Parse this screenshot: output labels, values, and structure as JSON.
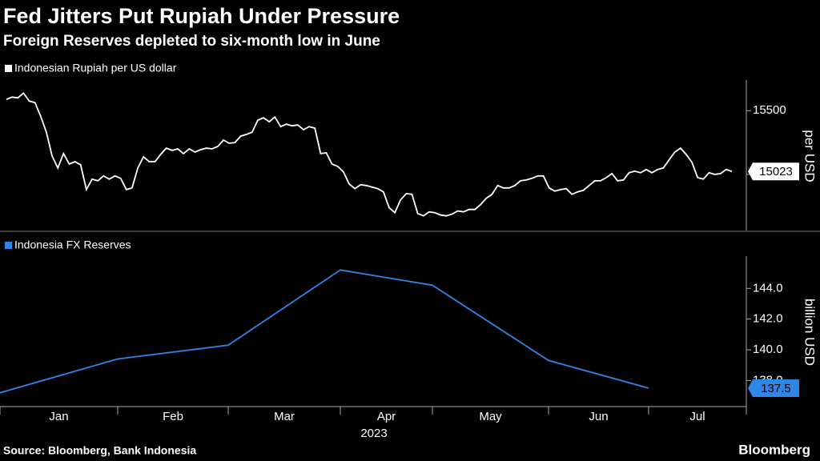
{
  "title": "Fed Jitters Put Rupiah Under Pressure",
  "subtitle": "Foreign Reserves depleted to six-month low in June",
  "source": "Source: Bloomberg, Bank Indonesia",
  "brand": "Bloomberg",
  "chart_data": [
    {
      "type": "line",
      "ylabel": "per USD",
      "ylim": [
        14560,
        15740
      ],
      "yticks": [
        15000,
        15500
      ],
      "series": [
        {
          "name": "Indonesian Rupiah per US dollar",
          "color": "#ffffff",
          "values": [
            15588,
            15606,
            15600,
            15638,
            15575,
            15563,
            15456,
            15331,
            15144,
            15050,
            15163,
            15081,
            15100,
            15075,
            14881,
            14963,
            14950,
            14988,
            14963,
            14988,
            14969,
            14881,
            14894,
            15050,
            15138,
            15100,
            15100,
            15156,
            15206,
            15188,
            15200,
            15163,
            15200,
            15175,
            15194,
            15206,
            15200,
            15219,
            15269,
            15244,
            15250,
            15300,
            15313,
            15331,
            15425,
            15444,
            15413,
            15450,
            15375,
            15394,
            15381,
            15388,
            15350,
            15375,
            15363,
            15163,
            15169,
            15081,
            15063,
            15019,
            14925,
            14888,
            14919,
            14913,
            14900,
            14888,
            14863,
            14738,
            14700,
            14800,
            14850,
            14844,
            14694,
            14675,
            14706,
            14700,
            14681,
            14675,
            14688,
            14713,
            14706,
            14725,
            14725,
            14763,
            14813,
            14844,
            14913,
            14894,
            14894,
            14913,
            14950,
            14956,
            14969,
            14988,
            14988,
            14894,
            14869,
            14881,
            14888,
            14844,
            14863,
            14875,
            14913,
            14950,
            14950,
            14975,
            15006,
            14950,
            14956,
            15013,
            15025,
            15013,
            15038,
            15013,
            15038,
            15050,
            15113,
            15175,
            15206,
            15156,
            15094,
            14975,
            14963,
            15013,
            15000,
            15006,
            15038,
            15023
          ]
        }
      ]
    },
    {
      "type": "line",
      "ylabel": "billion USD",
      "ylim": [
        136.3,
        146.1
      ],
      "yticks": [
        {
          "value": 138,
          "label": "138.0"
        },
        {
          "value": 140,
          "label": "140.0"
        },
        {
          "value": 142,
          "label": "142.0"
        },
        {
          "value": 144,
          "label": "144.0"
        }
      ],
      "x_labels": [
        "Jan",
        "Feb",
        "Mar",
        "Apr",
        "May",
        "Jun",
        "Jul"
      ],
      "x_sublabel": "2023",
      "series": [
        {
          "name": "Indonesia FX Reserves",
          "color": "#2f86e6",
          "values": [
            137.2,
            139.4,
            140.3,
            145.2,
            144.2,
            139.3,
            137.5
          ]
        }
      ]
    }
  ]
}
